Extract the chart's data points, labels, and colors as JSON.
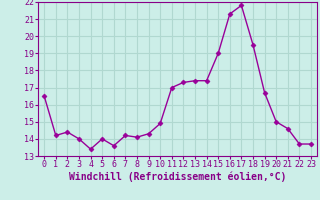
{
  "x": [
    0,
    1,
    2,
    3,
    4,
    5,
    6,
    7,
    8,
    9,
    10,
    11,
    12,
    13,
    14,
    15,
    16,
    17,
    18,
    19,
    20,
    21,
    22,
    23
  ],
  "y": [
    16.5,
    14.2,
    14.4,
    14.0,
    13.4,
    14.0,
    13.6,
    14.2,
    14.1,
    14.3,
    14.9,
    17.0,
    17.3,
    17.4,
    17.4,
    19.0,
    21.3,
    21.8,
    19.5,
    16.7,
    15.0,
    14.6,
    13.7,
    13.7
  ],
  "line_color": "#990099",
  "marker": "D",
  "markersize": 2.5,
  "linewidth": 1,
  "xlabel": "Windchill (Refroidissement éolien,°C)",
  "xlabel_fontsize": 7,
  "ylim": [
    13,
    22
  ],
  "xlim": [
    -0.5,
    23.5
  ],
  "yticks": [
    13,
    14,
    15,
    16,
    17,
    18,
    19,
    20,
    21,
    22
  ],
  "xticks": [
    0,
    1,
    2,
    3,
    4,
    5,
    6,
    7,
    8,
    9,
    10,
    11,
    12,
    13,
    14,
    15,
    16,
    17,
    18,
    19,
    20,
    21,
    22,
    23
  ],
  "tick_fontsize": 6,
  "bg_color": "#cceee8",
  "grid_color": "#b0d8d0",
  "axis_label_color": "#880088",
  "tick_color": "#880088",
  "spine_color": "#880088"
}
